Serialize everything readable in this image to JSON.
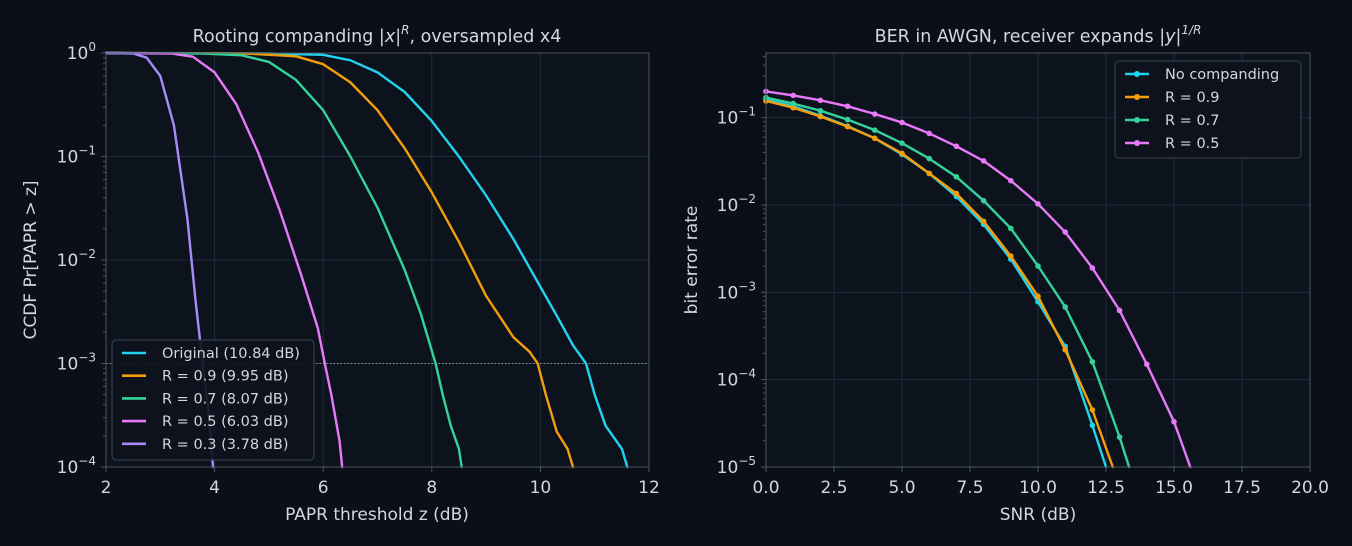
{
  "theme": {
    "background": "#0b0f17",
    "plot_background": "#0d131d",
    "grid": "#1f2a3a",
    "axis": "#4a5566",
    "text": "#d3d8df",
    "legend_bg": "#0d131d",
    "legend_border": "#3b4656"
  },
  "chart_data": [
    {
      "type": "line",
      "title_parts": [
        "Rooting companding |",
        "x",
        "|",
        "R",
        ", oversampled x4"
      ],
      "xlabel": "PAPR threshold z (dB)",
      "ylabel": "CCDF  Pr[PAPR > z]",
      "xlim": [
        2,
        12
      ],
      "ylim": [
        0.0001,
        1
      ],
      "yscale": "log",
      "xticks": [
        "2",
        "4",
        "6",
        "8",
        "10",
        "12"
      ],
      "ytick_exponents": [
        "0",
        "−1",
        "−2",
        "−3",
        "−4"
      ],
      "ytick_values": [
        1,
        0.1,
        0.01,
        0.001,
        0.0001
      ],
      "grid": true,
      "legend_position": "lower-left",
      "reference_line": {
        "y": 0.001,
        "style": "dotted"
      },
      "series": [
        {
          "name": "Original (10.84 dB)",
          "color": "#22d3ee",
          "x": [
            2,
            5,
            6,
            6.5,
            7,
            7.5,
            8,
            8.5,
            9,
            9.5,
            10,
            10.3,
            10.6,
            10.84,
            11.0,
            11.2,
            11.5,
            11.6
          ],
          "y": [
            1,
            0.99,
            0.96,
            0.85,
            0.65,
            0.42,
            0.22,
            0.1,
            0.042,
            0.016,
            0.0055,
            0.0029,
            0.0015,
            0.001,
            0.0005,
            0.00025,
            0.00015,
            0.0001
          ]
        },
        {
          "name": "R = 0.9 (9.95 dB)",
          "color": "#f59e0b",
          "x": [
            2,
            4.6,
            5.5,
            6,
            6.5,
            7,
            7.5,
            8,
            8.5,
            9,
            9.5,
            9.8,
            9.95,
            10.1,
            10.3,
            10.5,
            10.6
          ],
          "y": [
            1,
            0.99,
            0.93,
            0.78,
            0.52,
            0.28,
            0.12,
            0.045,
            0.015,
            0.0045,
            0.0018,
            0.0013,
            0.001,
            0.0005,
            0.00022,
            0.00015,
            0.0001
          ]
        },
        {
          "name": "R = 0.7 (8.07 dB)",
          "color": "#34d399",
          "x": [
            2,
            3.8,
            4.5,
            5,
            5.5,
            6,
            6.5,
            7,
            7.5,
            7.8,
            8.07,
            8.2,
            8.35,
            8.5,
            8.55
          ],
          "y": [
            1,
            0.99,
            0.95,
            0.82,
            0.55,
            0.28,
            0.1,
            0.032,
            0.008,
            0.003,
            0.001,
            0.0005,
            0.00025,
            0.00015,
            0.0001
          ]
        },
        {
          "name": "R = 0.5 (6.03 dB)",
          "color": "#e879f9",
          "x": [
            2,
            3.2,
            3.6,
            4,
            4.4,
            4.8,
            5.2,
            5.6,
            5.9,
            6.03,
            6.15,
            6.3,
            6.35
          ],
          "y": [
            1,
            0.99,
            0.92,
            0.65,
            0.32,
            0.11,
            0.03,
            0.007,
            0.0022,
            0.001,
            0.0005,
            0.00018,
            0.0001
          ]
        },
        {
          "name": "R = 0.3 (3.78 dB)",
          "color": "#a78bfa",
          "x": [
            2,
            2.5,
            2.75,
            3.0,
            3.25,
            3.5,
            3.65,
            3.78,
            3.9,
            3.97
          ],
          "y": [
            1,
            0.99,
            0.9,
            0.6,
            0.2,
            0.025,
            0.004,
            0.001,
            0.0003,
            0.0001
          ]
        }
      ]
    },
    {
      "type": "line",
      "title_parts": [
        "BER in AWGN, receiver expands |",
        "y",
        "|",
        "1/R",
        ""
      ],
      "xlabel": "SNR (dB)",
      "ylabel": "bit error rate",
      "xlim": [
        0,
        20
      ],
      "ylim": [
        1e-05,
        0.55
      ],
      "yscale": "log",
      "xticks": [
        "0.0",
        "2.5",
        "5.0",
        "7.5",
        "10.0",
        "12.5",
        "15.0",
        "17.5",
        "20.0"
      ],
      "ytick_exponents": [
        "−1",
        "−2",
        "−3",
        "−4",
        "−5"
      ],
      "ytick_values": [
        0.1,
        0.01,
        0.001,
        0.0001,
        1e-05
      ],
      "grid": true,
      "legend_position": "top-right",
      "series": [
        {
          "name": "No companding",
          "color": "#22d3ee",
          "x": [
            0,
            1,
            2,
            3,
            4,
            5,
            6,
            7,
            8,
            9,
            10,
            11,
            12,
            12.5
          ],
          "y": [
            0.16,
            0.135,
            0.105,
            0.08,
            0.058,
            0.038,
            0.023,
            0.0125,
            0.006,
            0.0024,
            0.00078,
            0.00024,
            3e-05,
            1e-05
          ]
        },
        {
          "name": "R = 0.9",
          "color": "#f59e0b",
          "x": [
            0,
            1,
            2,
            3,
            4,
            5,
            6,
            7,
            8,
            9,
            10,
            11,
            12,
            12.75
          ],
          "y": [
            0.155,
            0.13,
            0.103,
            0.079,
            0.058,
            0.039,
            0.023,
            0.0135,
            0.0065,
            0.0026,
            0.0009,
            0.00022,
            4.5e-05,
            1e-05
          ]
        },
        {
          "name": "R = 0.7",
          "color": "#34d399",
          "x": [
            0,
            1,
            2,
            3,
            4,
            5,
            6,
            7,
            8,
            9,
            10,
            11,
            12,
            13,
            13.35
          ],
          "y": [
            0.17,
            0.145,
            0.12,
            0.095,
            0.072,
            0.051,
            0.034,
            0.021,
            0.0112,
            0.0054,
            0.002,
            0.00068,
            0.00016,
            2.2e-05,
            1e-05
          ]
        },
        {
          "name": "R = 0.5",
          "color": "#e879f9",
          "x": [
            0,
            1,
            2,
            3,
            4,
            5,
            6,
            7,
            8,
            9,
            10,
            11,
            12,
            13,
            14,
            15,
            15.6
          ],
          "y": [
            0.2,
            0.18,
            0.158,
            0.135,
            0.11,
            0.088,
            0.066,
            0.047,
            0.032,
            0.019,
            0.0103,
            0.0049,
            0.0019,
            0.00062,
            0.00015,
            3.3e-05,
            1e-05
          ]
        }
      ]
    }
  ]
}
